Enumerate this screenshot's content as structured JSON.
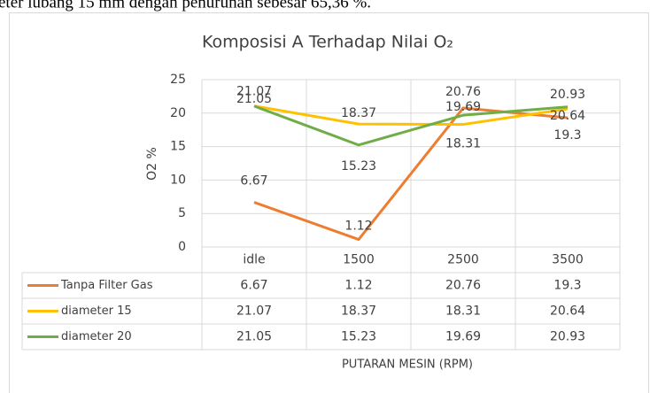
{
  "header_text": "eter lubang 15 mm dengan penurunan sebesar 65,36 %.",
  "chart_data": {
    "type": "line",
    "title": "Komposisi A Terhadap Nilai O₂",
    "y_label": "O2 %",
    "x_label": "PUTARAN MESIN (RPM)",
    "categories": [
      "idle",
      "1500",
      "2500",
      "3500"
    ],
    "series": [
      {
        "name": "Tanpa Filter Gas",
        "color": "#ed7d31",
        "values": [
          6.67,
          1.12,
          20.76,
          19.3
        ]
      },
      {
        "name": "diameter 15",
        "color": "#ffc000",
        "values": [
          21.07,
          18.37,
          18.31,
          20.64
        ]
      },
      {
        "name": "diameter 20",
        "color": "#70ad47",
        "values": [
          21.05,
          15.23,
          19.69,
          20.93
        ]
      }
    ],
    "ylim": [
      0,
      25
    ],
    "yticks": [
      0,
      5,
      10,
      15,
      20,
      25
    ],
    "grid": true
  }
}
